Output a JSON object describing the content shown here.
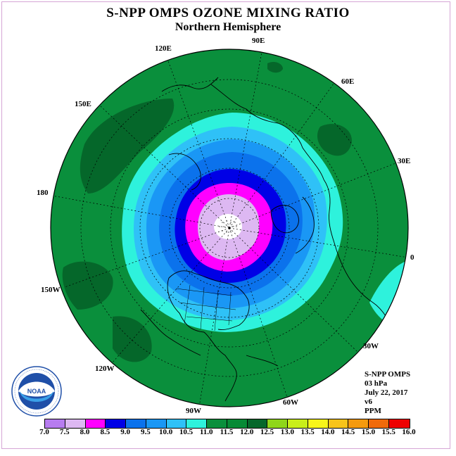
{
  "title": "S-NPP OMPS OZONE MIXING RATIO",
  "subtitle": "Northern Hemisphere",
  "longitude_labels": [
    "90E",
    "60E",
    "30E",
    "0",
    "30W",
    "60W",
    "90W",
    "120W",
    "150W",
    "180",
    "150E",
    "120E"
  ],
  "info": {
    "instrument": "S-NPP OMPS",
    "level": "03 hPa",
    "date": "July 22, 2017",
    "version": "v6",
    "units": "PPM"
  },
  "colorbar": {
    "ticks": [
      "7.0",
      "7.5",
      "8.0",
      "8.5",
      "9.0",
      "9.5",
      "10.0",
      "10.5",
      "11.0",
      "11.5",
      "12.0",
      "12.5",
      "13.0",
      "13.5",
      "14.0",
      "14.5",
      "15.0",
      "15.5",
      "16.0"
    ],
    "colors": [
      "#b77cf0",
      "#ddb8f2",
      "#ff00ff",
      "#0000e6",
      "#0b72ec",
      "#1a97f5",
      "#2fc1f7",
      "#2ef2dc",
      "#0a8f3c",
      "#078a35",
      "#05672a",
      "#8fd61a",
      "#c9ee1a",
      "#f8f51a",
      "#f8c41a",
      "#f59a0e",
      "#f06a0a",
      "#ee0000",
      "#7a4a2a"
    ]
  },
  "logo_text": "NOAA",
  "logo_ring_text": "NATIONAL OCEANIC AND ATMOSPHERIC ADMINISTRATION · U.S. DEPARTMENT OF COMMERCE"
}
